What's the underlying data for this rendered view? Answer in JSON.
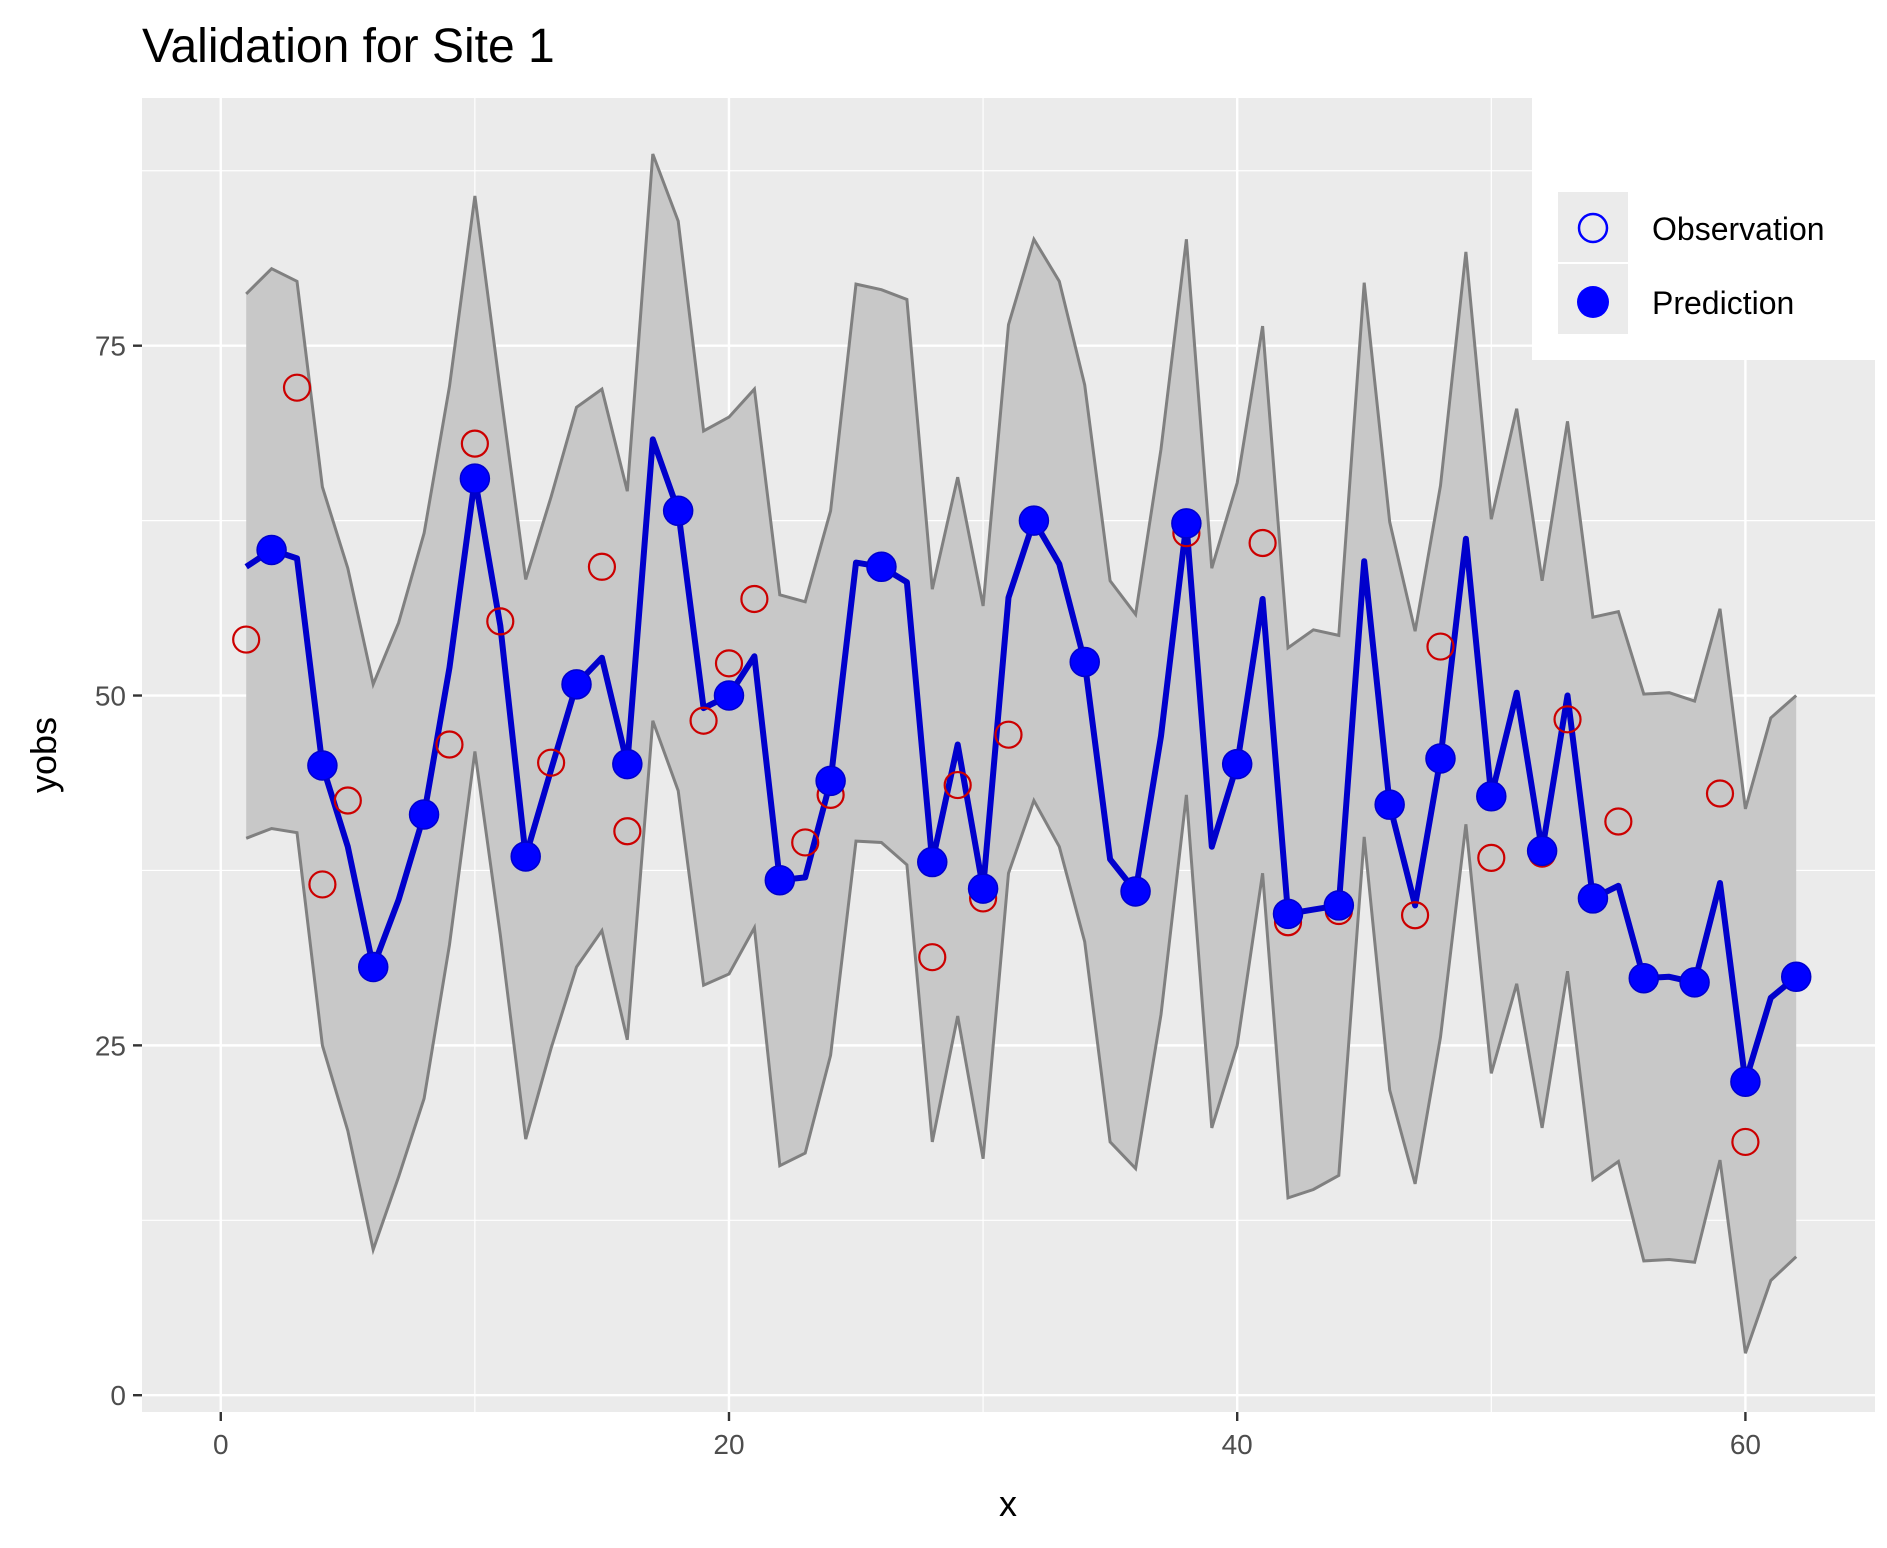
{
  "chart_data": {
    "type": "line",
    "title": "Validation for Site 1",
    "xlabel": "x",
    "ylabel": "yobs",
    "xlim": [
      -3.1,
      65.1
    ],
    "ylim": [
      -1.2,
      92.7
    ],
    "x_ticks": [
      0,
      20,
      40,
      60
    ],
    "y_ticks": [
      0,
      25,
      50,
      75
    ],
    "x_tick_labels": [
      "0",
      "20",
      "40",
      "60"
    ],
    "y_tick_labels": [
      "0",
      "25",
      "50",
      "75"
    ],
    "grid": true,
    "legend_position": "top-right",
    "colors": {
      "panel_background": "#ebebeb",
      "grid": "#ffffff",
      "ribbon_fill": "#c8c8c8",
      "ribbon_line": "#808080",
      "prediction": "#0000ff",
      "prediction_line": "#0000cc",
      "observation": "#cc0000",
      "legend_observation": "#0000ff"
    },
    "x": [
      1,
      2,
      3,
      4,
      5,
      6,
      7,
      8,
      9,
      10,
      11,
      12,
      13,
      14,
      15,
      16,
      17,
      18,
      19,
      20,
      21,
      22,
      23,
      24,
      25,
      26,
      27,
      28,
      29,
      30,
      31,
      32,
      33,
      34,
      35,
      36,
      37,
      38,
      39,
      40,
      41,
      42,
      43,
      44,
      45,
      46,
      47,
      48,
      49,
      50,
      51,
      52,
      53,
      54,
      55,
      56,
      57,
      58,
      59,
      60,
      61,
      62
    ],
    "series": [
      {
        "name": "Observation",
        "marker": "open-circle",
        "values": [
          54,
          null,
          72,
          36.5,
          42.5,
          null,
          null,
          null,
          46.5,
          68,
          55.3,
          null,
          45.2,
          null,
          59.2,
          40.3,
          null,
          null,
          48.2,
          52.3,
          56.9,
          null,
          39.5,
          42.9,
          null,
          null,
          null,
          31.3,
          43.6,
          35.5,
          47.2,
          null,
          null,
          null,
          null,
          null,
          null,
          61.6,
          null,
          null,
          60.9,
          33.8,
          null,
          34.6,
          null,
          null,
          34.3,
          53.5,
          null,
          38.4,
          null,
          38.7,
          48.3,
          null,
          41,
          null,
          null,
          null,
          43,
          18.1,
          null,
          null
        ]
      },
      {
        "name": "Prediction",
        "marker": "filled-circle",
        "values": [
          59.2,
          60.4,
          59.8,
          45,
          39.2,
          30.6,
          35.4,
          41.5,
          52,
          65.5,
          55,
          38.5,
          44.7,
          50.8,
          52.7,
          45.1,
          68.3,
          63.2,
          49.1,
          50,
          52.8,
          36.8,
          37,
          43.9,
          59.5,
          59.2,
          58.1,
          38.1,
          46.5,
          36.2,
          57,
          62.5,
          59.4,
          52.4,
          38.3,
          36,
          47.1,
          62.3,
          39.2,
          45.1,
          56.9,
          34.4,
          34.7,
          35,
          59.6,
          42.2,
          35,
          45.5,
          61.2,
          42.8,
          50.2,
          38.9,
          50,
          35.5,
          36.4,
          29.8,
          29.9,
          29.5,
          36.6,
          22.4,
          28.4,
          29.9
        ]
      }
    ],
    "interval": {
      "upper": [
        78.7,
        80.5,
        79.6,
        64.9,
        59.1,
        50.8,
        55.2,
        61.6,
        72.1,
        85.7,
        71.8,
        58.3,
        64.2,
        70.6,
        71.9,
        64.6,
        88.7,
        83.9,
        68.9,
        69.9,
        71.9,
        57.2,
        56.7,
        63.2,
        79.4,
        79,
        78.3,
        57.6,
        65.6,
        56.4,
        76.5,
        82.6,
        79.6,
        72.2,
        58.2,
        55.8,
        67.6,
        82.6,
        59.1,
        65.2,
        76.4,
        53.4,
        54.7,
        54.3,
        79.5,
        62.4,
        54.6,
        65,
        81.7,
        62.6,
        70.5,
        58.2,
        69.6,
        55.6,
        56,
        50.1,
        50.2,
        49.6,
        56.2,
        41.9,
        48.4,
        50
      ],
      "lower": [
        39.8,
        40.5,
        40.2,
        25,
        18.9,
        10.4,
        15.6,
        21.2,
        32.2,
        46,
        32.9,
        18.3,
        24.8,
        30.6,
        33.2,
        25.4,
        48.2,
        43.2,
        29.3,
        30.1,
        33.4,
        16.4,
        17.3,
        24.3,
        39.6,
        39.5,
        37.9,
        18.1,
        27.1,
        16.9,
        37.3,
        42.5,
        39.2,
        32.4,
        18.1,
        16.2,
        27.2,
        42.9,
        19.1,
        25,
        37.3,
        14.1,
        14.7,
        15.7,
        39.9,
        21.8,
        15.1,
        25.6,
        40.8,
        23,
        29.4,
        19.1,
        30.3,
        15.4,
        16.7,
        9.6,
        9.7,
        9.5,
        16.8,
        3,
        8.2,
        9.9
      ]
    }
  }
}
